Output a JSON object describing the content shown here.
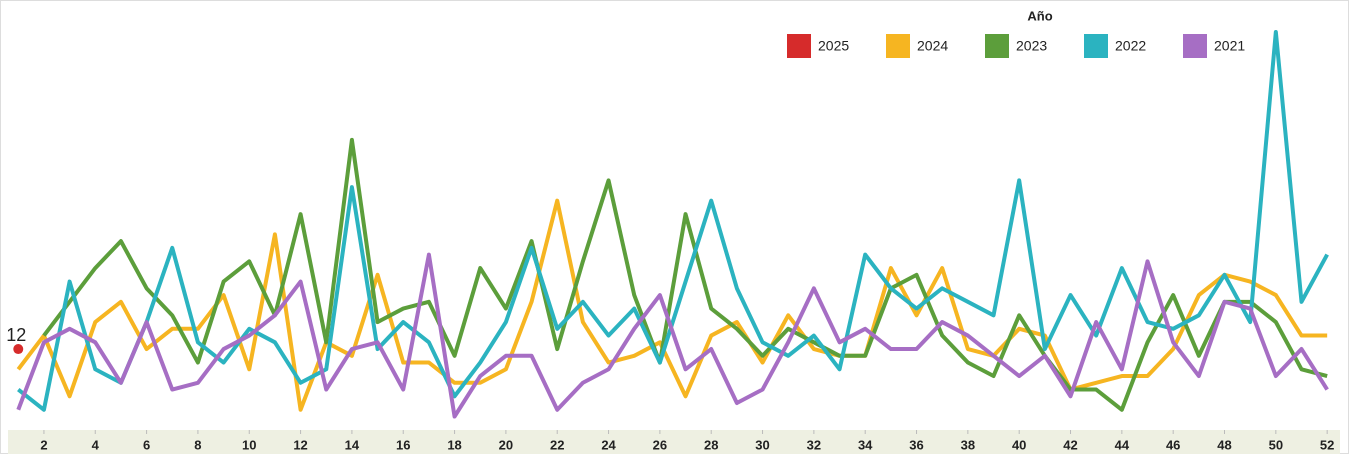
{
  "chart_data": {
    "type": "line",
    "legend_title": "Año",
    "legend": "top-right",
    "x": [
      1,
      2,
      3,
      4,
      5,
      6,
      7,
      8,
      9,
      10,
      11,
      12,
      13,
      14,
      15,
      16,
      17,
      18,
      19,
      20,
      21,
      22,
      23,
      24,
      25,
      26,
      27,
      28,
      29,
      30,
      31,
      32,
      33,
      34,
      35,
      36,
      37,
      38,
      39,
      40,
      41,
      42,
      43,
      44,
      45,
      46,
      47,
      48,
      49,
      50,
      51,
      52
    ],
    "xlim": [
      0.6,
      52.5
    ],
    "xticks": [
      2,
      4,
      6,
      8,
      10,
      12,
      14,
      16,
      18,
      20,
      22,
      24,
      26,
      28,
      30,
      32,
      34,
      36,
      38,
      40,
      42,
      44,
      46,
      48,
      50,
      52
    ],
    "ylim": [
      0,
      63
    ],
    "series": [
      {
        "name": "2025",
        "color": "#d62b2b",
        "point_labels": true,
        "values": [
          12,
          null,
          null,
          null,
          null,
          null,
          null,
          null,
          null,
          null,
          null,
          null,
          null,
          null,
          null,
          null,
          null,
          null,
          null,
          null,
          null,
          null,
          null,
          null,
          null,
          null,
          null,
          null,
          null,
          null,
          null,
          null,
          null,
          null,
          null,
          null,
          null,
          null,
          null,
          null,
          null,
          null,
          null,
          null,
          null,
          null,
          null,
          null,
          null,
          null,
          null,
          null
        ]
      },
      {
        "name": "2024",
        "color": "#f6b521",
        "values": [
          9,
          14,
          5,
          16,
          19,
          12,
          15,
          15,
          20,
          9,
          29,
          3,
          13,
          11,
          23,
          10,
          10,
          7,
          7,
          9,
          19,
          34,
          16,
          10,
          11,
          13,
          5,
          14,
          16,
          10,
          17,
          12,
          11,
          11,
          24,
          17,
          24,
          12,
          11,
          15,
          14,
          6,
          7,
          8,
          8,
          12,
          20,
          23,
          22,
          20,
          14,
          14
        ]
      },
      {
        "name": "2023",
        "color": "#5c9e3b",
        "values": [
          null,
          14,
          19,
          24,
          28,
          21,
          17,
          10,
          22,
          25,
          17,
          32,
          13,
          43,
          16,
          18,
          19,
          11,
          24,
          18,
          28,
          12,
          25,
          37,
          20,
          10,
          32,
          18,
          15,
          11,
          15,
          13,
          11,
          11,
          21,
          23,
          14,
          10,
          8,
          17,
          11,
          6,
          6,
          3,
          13,
          20,
          11,
          19,
          19,
          16,
          9,
          8
        ]
      },
      {
        "name": "2022",
        "color": "#2bb3c0",
        "values": [
          6,
          3,
          22,
          9,
          7,
          16,
          27,
          13,
          10,
          15,
          13,
          7,
          9,
          36,
          12,
          16,
          13,
          5,
          10,
          16,
          27,
          15,
          19,
          14,
          18,
          10,
          22,
          34,
          21,
          13,
          11,
          14,
          9,
          26,
          21,
          18,
          21,
          19,
          17,
          37,
          12,
          20,
          14,
          24,
          16,
          15,
          17,
          23,
          16,
          59,
          19,
          26
        ]
      },
      {
        "name": "2021",
        "color": "#a66ec4",
        "values": [
          3,
          13,
          15,
          13,
          7,
          16,
          6,
          7,
          12,
          14,
          17,
          22,
          6,
          12,
          13,
          6,
          26,
          2,
          8,
          11,
          11,
          3,
          7,
          9,
          15,
          20,
          9,
          12,
          4,
          6,
          13,
          21,
          13,
          15,
          12,
          12,
          16,
          14,
          11,
          8,
          11,
          5,
          16,
          9,
          25,
          13,
          8,
          19,
          18,
          8,
          12,
          6
        ]
      }
    ]
  }
}
